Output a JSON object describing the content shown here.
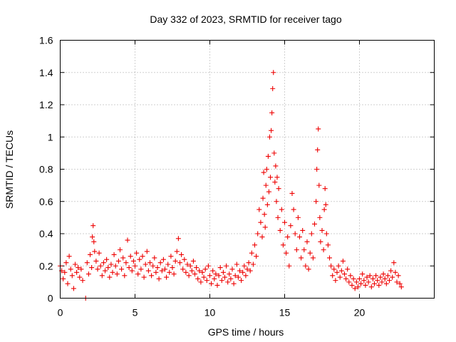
{
  "chart_data": {
    "type": "scatter",
    "title": "Day 332 of 2023, SRMTID for receiver tago",
    "xlabel": "GPS time / hours",
    "ylabel": "SRMTID / TECUs",
    "xlim": [
      0,
      25
    ],
    "ylim": [
      0,
      1.6
    ],
    "xticks": [
      0,
      5,
      10,
      15,
      20
    ],
    "xtick_labels": [
      "0",
      "5",
      "10",
      "15",
      "20"
    ],
    "yticks": [
      0,
      0.2,
      0.4,
      0.6,
      0.8,
      1,
      1.2,
      1.4,
      1.6
    ],
    "ytick_labels": [
      "0",
      "0.2",
      "0.4",
      "0.6",
      "0.8",
      "1",
      "1.2",
      "1.4",
      "1.6"
    ],
    "grid": true,
    "marker": "+",
    "series": [
      {
        "name": "SRMTID",
        "color": "#ee0000",
        "points": [
          [
            0.0,
            0.2
          ],
          [
            0.1,
            0.17
          ],
          [
            0.2,
            0.12
          ],
          [
            0.3,
            0.16
          ],
          [
            0.4,
            0.22
          ],
          [
            0.5,
            0.09
          ],
          [
            0.6,
            0.26
          ],
          [
            0.7,
            0.18
          ],
          [
            0.8,
            0.14
          ],
          [
            0.9,
            0.06
          ],
          [
            1.0,
            0.21
          ],
          [
            1.1,
            0.16
          ],
          [
            1.2,
            0.19
          ],
          [
            1.3,
            0.13
          ],
          [
            1.4,
            0.18
          ],
          [
            1.5,
            0.11
          ],
          [
            1.7,
            0.0
          ],
          [
            1.8,
            0.22
          ],
          [
            1.9,
            0.15
          ],
          [
            2.0,
            0.27
          ],
          [
            2.1,
            0.19
          ],
          [
            2.15,
            0.38
          ],
          [
            2.2,
            0.45
          ],
          [
            2.25,
            0.35
          ],
          [
            2.3,
            0.29
          ],
          [
            2.4,
            0.23
          ],
          [
            2.5,
            0.18
          ],
          [
            2.6,
            0.28
          ],
          [
            2.7,
            0.2
          ],
          [
            2.8,
            0.14
          ],
          [
            2.9,
            0.22
          ],
          [
            3.0,
            0.17
          ],
          [
            3.1,
            0.24
          ],
          [
            3.2,
            0.19
          ],
          [
            3.3,
            0.13
          ],
          [
            3.4,
            0.21
          ],
          [
            3.5,
            0.16
          ],
          [
            3.6,
            0.27
          ],
          [
            3.7,
            0.2
          ],
          [
            3.8,
            0.15
          ],
          [
            3.9,
            0.23
          ],
          [
            4.0,
            0.3
          ],
          [
            4.1,
            0.18
          ],
          [
            4.2,
            0.25
          ],
          [
            4.3,
            0.14
          ],
          [
            4.4,
            0.22
          ],
          [
            4.5,
            0.36
          ],
          [
            4.6,
            0.19
          ],
          [
            4.7,
            0.26
          ],
          [
            4.8,
            0.17
          ],
          [
            4.9,
            0.23
          ],
          [
            5.0,
            0.2
          ],
          [
            5.1,
            0.28
          ],
          [
            5.2,
            0.15
          ],
          [
            5.3,
            0.24
          ],
          [
            5.4,
            0.18
          ],
          [
            5.5,
            0.26
          ],
          [
            5.6,
            0.13
          ],
          [
            5.7,
            0.21
          ],
          [
            5.8,
            0.29
          ],
          [
            5.9,
            0.17
          ],
          [
            6.0,
            0.22
          ],
          [
            6.1,
            0.14
          ],
          [
            6.2,
            0.2
          ],
          [
            6.3,
            0.25
          ],
          [
            6.4,
            0.16
          ],
          [
            6.5,
            0.19
          ],
          [
            6.6,
            0.12
          ],
          [
            6.7,
            0.22
          ],
          [
            6.8,
            0.17
          ],
          [
            6.9,
            0.24
          ],
          [
            7.0,
            0.18
          ],
          [
            7.1,
            0.13
          ],
          [
            7.2,
            0.21
          ],
          [
            7.3,
            0.16
          ],
          [
            7.4,
            0.26
          ],
          [
            7.5,
            0.19
          ],
          [
            7.6,
            0.15
          ],
          [
            7.7,
            0.23
          ],
          [
            7.8,
            0.29
          ],
          [
            7.9,
            0.37
          ],
          [
            8.0,
            0.22
          ],
          [
            8.1,
            0.27
          ],
          [
            8.2,
            0.18
          ],
          [
            8.3,
            0.24
          ],
          [
            8.4,
            0.16
          ],
          [
            8.5,
            0.21
          ],
          [
            8.6,
            0.14
          ],
          [
            8.7,
            0.2
          ],
          [
            8.8,
            0.17
          ],
          [
            8.9,
            0.23
          ],
          [
            9.0,
            0.15
          ],
          [
            9.1,
            0.19
          ],
          [
            9.2,
            0.12
          ],
          [
            9.3,
            0.17
          ],
          [
            9.4,
            0.1
          ],
          [
            9.5,
            0.16
          ],
          [
            9.6,
            0.13
          ],
          [
            9.7,
            0.18
          ],
          [
            9.8,
            0.11
          ],
          [
            9.9,
            0.2
          ],
          [
            10.0,
            0.14
          ],
          [
            10.1,
            0.09
          ],
          [
            10.2,
            0.17
          ],
          [
            10.3,
            0.12
          ],
          [
            10.4,
            0.15
          ],
          [
            10.5,
            0.08
          ],
          [
            10.6,
            0.14
          ],
          [
            10.7,
            0.19
          ],
          [
            10.8,
            0.11
          ],
          [
            10.9,
            0.16
          ],
          [
            11.0,
            0.13
          ],
          [
            11.1,
            0.2
          ],
          [
            11.2,
            0.1
          ],
          [
            11.3,
            0.15
          ],
          [
            11.4,
            0.12
          ],
          [
            11.5,
            0.18
          ],
          [
            11.6,
            0.09
          ],
          [
            11.7,
            0.14
          ],
          [
            11.8,
            0.21
          ],
          [
            11.9,
            0.13
          ],
          [
            12.0,
            0.17
          ],
          [
            12.1,
            0.11
          ],
          [
            12.2,
            0.16
          ],
          [
            12.3,
            0.2
          ],
          [
            12.4,
            0.14
          ],
          [
            12.5,
            0.18
          ],
          [
            12.6,
            0.22
          ],
          [
            12.7,
            0.17
          ],
          [
            12.8,
            0.28
          ],
          [
            12.9,
            0.21
          ],
          [
            13.0,
            0.33
          ],
          [
            13.1,
            0.26
          ],
          [
            13.2,
            0.4
          ],
          [
            13.3,
            0.55
          ],
          [
            13.4,
            0.47
          ],
          [
            13.5,
            0.38
          ],
          [
            13.55,
            0.62
          ],
          [
            13.6,
            0.78
          ],
          [
            13.65,
            0.52
          ],
          [
            13.7,
            0.44
          ],
          [
            13.75,
            0.7
          ],
          [
            13.8,
            0.8
          ],
          [
            13.85,
            0.58
          ],
          [
            13.9,
            0.88
          ],
          [
            13.95,
            0.66
          ],
          [
            14.0,
            1.0
          ],
          [
            14.05,
            0.75
          ],
          [
            14.1,
            1.04
          ],
          [
            14.15,
            1.15
          ],
          [
            14.2,
            1.3
          ],
          [
            14.25,
            1.4
          ],
          [
            14.3,
            0.9
          ],
          [
            14.35,
            0.72
          ],
          [
            14.4,
            0.82
          ],
          [
            14.45,
            0.6
          ],
          [
            14.5,
            0.75
          ],
          [
            14.55,
            0.5
          ],
          [
            14.6,
            0.68
          ],
          [
            14.7,
            0.42
          ],
          [
            14.8,
            0.55
          ],
          [
            14.9,
            0.33
          ],
          [
            15.0,
            0.47
          ],
          [
            15.1,
            0.28
          ],
          [
            15.2,
            0.38
          ],
          [
            15.3,
            0.2
          ],
          [
            15.4,
            0.45
          ],
          [
            15.5,
            0.65
          ],
          [
            15.6,
            0.55
          ],
          [
            15.7,
            0.4
          ],
          [
            15.8,
            0.3
          ],
          [
            15.9,
            0.5
          ],
          [
            16.0,
            0.38
          ],
          [
            16.1,
            0.25
          ],
          [
            16.2,
            0.42
          ],
          [
            16.3,
            0.3
          ],
          [
            16.4,
            0.2
          ],
          [
            16.5,
            0.35
          ],
          [
            16.6,
            0.18
          ],
          [
            16.7,
            0.28
          ],
          [
            16.8,
            0.4
          ],
          [
            16.9,
            0.25
          ],
          [
            17.0,
            0.46
          ],
          [
            17.1,
            0.6
          ],
          [
            17.15,
            0.8
          ],
          [
            17.2,
            0.92
          ],
          [
            17.25,
            1.05
          ],
          [
            17.3,
            0.7
          ],
          [
            17.35,
            0.5
          ],
          [
            17.4,
            0.35
          ],
          [
            17.5,
            0.42
          ],
          [
            17.6,
            0.3
          ],
          [
            17.65,
            0.55
          ],
          [
            17.7,
            0.68
          ],
          [
            17.75,
            0.58
          ],
          [
            17.8,
            0.4
          ],
          [
            17.9,
            0.33
          ],
          [
            18.0,
            0.25
          ],
          [
            18.1,
            0.2
          ],
          [
            18.2,
            0.14
          ],
          [
            18.3,
            0.18
          ],
          [
            18.4,
            0.11
          ],
          [
            18.5,
            0.16
          ],
          [
            18.6,
            0.2
          ],
          [
            18.7,
            0.13
          ],
          [
            18.8,
            0.17
          ],
          [
            18.9,
            0.23
          ],
          [
            19.0,
            0.15
          ],
          [
            19.1,
            0.12
          ],
          [
            19.2,
            0.18
          ],
          [
            19.3,
            0.1
          ],
          [
            19.4,
            0.14
          ],
          [
            19.5,
            0.08
          ],
          [
            19.6,
            0.12
          ],
          [
            19.7,
            0.06
          ],
          [
            19.8,
            0.1
          ],
          [
            19.9,
            0.07
          ],
          [
            20.0,
            0.12
          ],
          [
            20.1,
            0.09
          ],
          [
            20.2,
            0.15
          ],
          [
            20.3,
            0.11
          ],
          [
            20.4,
            0.08
          ],
          [
            20.5,
            0.13
          ],
          [
            20.6,
            0.1
          ],
          [
            20.7,
            0.14
          ],
          [
            20.8,
            0.07
          ],
          [
            20.9,
            0.12
          ],
          [
            21.0,
            0.09
          ],
          [
            21.1,
            0.14
          ],
          [
            21.2,
            0.11
          ],
          [
            21.3,
            0.08
          ],
          [
            21.4,
            0.13
          ],
          [
            21.5,
            0.1
          ],
          [
            21.6,
            0.15
          ],
          [
            21.7,
            0.12
          ],
          [
            21.8,
            0.09
          ],
          [
            21.9,
            0.14
          ],
          [
            22.0,
            0.11
          ],
          [
            22.1,
            0.17
          ],
          [
            22.2,
            0.13
          ],
          [
            22.3,
            0.22
          ],
          [
            22.4,
            0.16
          ],
          [
            22.5,
            0.1
          ],
          [
            22.6,
            0.14
          ],
          [
            22.7,
            0.09
          ],
          [
            22.8,
            0.07
          ]
        ]
      }
    ]
  }
}
